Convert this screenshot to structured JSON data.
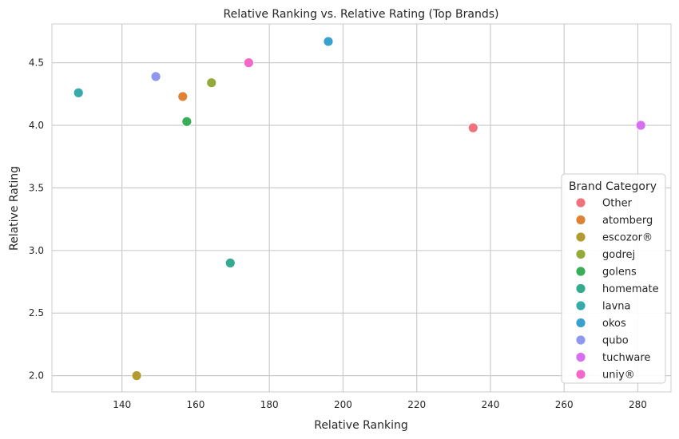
{
  "chart_data": {
    "type": "scatter",
    "title": "Relative Ranking vs. Relative Rating (Top Brands)",
    "xlabel": "Relative Ranking",
    "ylabel": "Relative Rating",
    "xlim": [
      121,
      289
    ],
    "ylim": [
      1.87,
      4.81
    ],
    "xticks": [
      140,
      160,
      180,
      200,
      220,
      240,
      260,
      280
    ],
    "yticks": [
      2.0,
      2.5,
      3.0,
      3.5,
      4.0,
      4.5
    ],
    "grid": true,
    "legend": {
      "title": "Brand Category",
      "position": "lower-right"
    },
    "series": [
      {
        "name": "Other",
        "color": "#f0727c",
        "points": [
          [
            235.3,
            3.98
          ]
        ]
      },
      {
        "name": "atomberg",
        "color": "#de8335",
        "points": [
          [
            156.5,
            4.23
          ]
        ]
      },
      {
        "name": "escozor®",
        "color": "#b39b31",
        "points": [
          [
            144.0,
            2.0
          ]
        ]
      },
      {
        "name": "godrej",
        "color": "#93a93a",
        "points": [
          [
            164.3,
            4.34
          ]
        ]
      },
      {
        "name": "golens",
        "color": "#39ae57",
        "points": [
          [
            157.6,
            4.03
          ]
        ]
      },
      {
        "name": "homemate",
        "color": "#36aa8e",
        "points": [
          [
            169.4,
            2.9
          ]
        ]
      },
      {
        "name": "lavna",
        "color": "#38aaab",
        "points": [
          [
            128.2,
            4.26
          ]
        ]
      },
      {
        "name": "okos",
        "color": "#3aa1cf",
        "points": [
          [
            196.0,
            4.67
          ]
        ]
      },
      {
        "name": "qubo",
        "color": "#9097ef",
        "points": [
          [
            149.2,
            4.39
          ]
        ]
      },
      {
        "name": "tuchware",
        "color": "#d86ef0",
        "points": [
          [
            280.8,
            4.0
          ]
        ]
      },
      {
        "name": "uniy®",
        "color": "#f267c7",
        "points": [
          [
            174.4,
            4.5
          ]
        ]
      }
    ]
  }
}
